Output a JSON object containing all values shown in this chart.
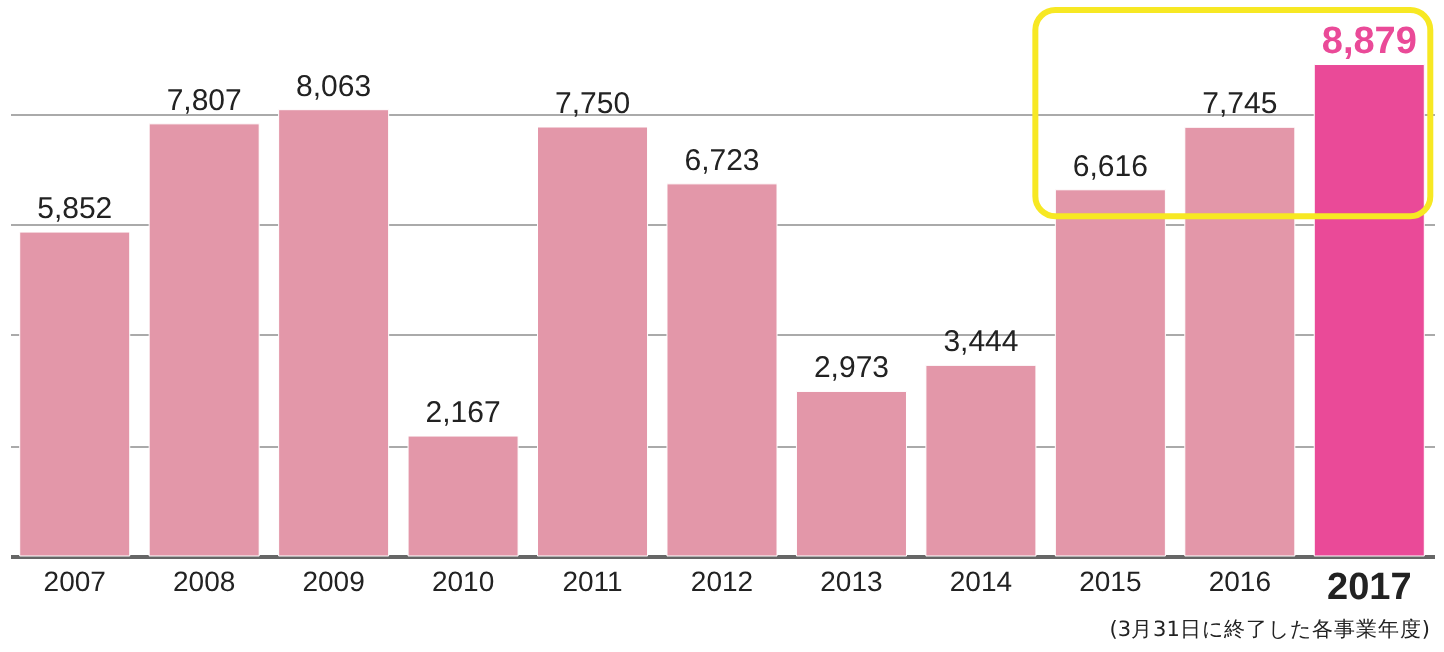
{
  "chart_data": {
    "type": "bar",
    "categories": [
      "2007",
      "2008",
      "2009",
      "2010",
      "2011",
      "2012",
      "2013",
      "2014",
      "2015",
      "2016",
      "2017"
    ],
    "values": [
      5852,
      7807,
      8063,
      2167,
      7750,
      6723,
      2973,
      3444,
      6616,
      7745,
      8879
    ],
    "value_labels": [
      "5,852",
      "7,807",
      "8,063",
      "2,167",
      "7,750",
      "6,723",
      "2,973",
      "3,444",
      "6,616",
      "7,745",
      "8,879"
    ],
    "colors": [
      "#e397a9",
      "#e397a9",
      "#e397a9",
      "#e397a9",
      "#e397a9",
      "#e397a9",
      "#e397a9",
      "#e397a9",
      "#e397a9",
      "#e397a9",
      "#ea4a98"
    ],
    "grid": "y",
    "annotations": [
      "(3月31日に終了した各事業年度)"
    ]
  }
}
